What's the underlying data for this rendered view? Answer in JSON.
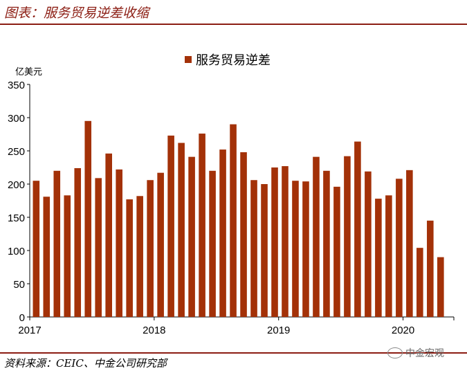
{
  "figure": {
    "title": "图表：服务贸易逆差收缩",
    "source": "资料来源：CEIC、中金公司研究部",
    "watermark": "中金宏观"
  },
  "colors": {
    "bar": "#a33108",
    "accent": "#8b1c12"
  },
  "chart_data": {
    "type": "bar",
    "ylabel": "亿美元",
    "ylim": [
      0,
      350
    ],
    "yticks": [
      0,
      50,
      100,
      150,
      200,
      250,
      300,
      350
    ],
    "year_labels": [
      {
        "label": "2017",
        "index": 0
      },
      {
        "label": "2018",
        "index": 12
      },
      {
        "label": "2019",
        "index": 24
      },
      {
        "label": "2020",
        "index": 36
      }
    ],
    "legend": "top-center",
    "grid": false,
    "series": [
      {
        "name": "服务贸易逆差",
        "values": [
          205,
          181,
          220,
          183,
          224,
          295,
          209,
          246,
          222,
          177,
          182,
          206,
          217,
          273,
          262,
          241,
          276,
          220,
          252,
          290,
          248,
          206,
          200,
          225,
          227,
          205,
          204,
          241,
          220,
          196,
          242,
          264,
          219,
          178,
          183,
          208,
          221,
          104,
          145,
          90
        ]
      }
    ]
  }
}
